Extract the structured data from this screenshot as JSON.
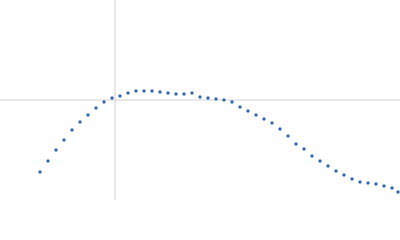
{
  "chart_data": {
    "type": "scatter",
    "x": [
      -0.75,
      -0.67,
      -0.59,
      -0.51,
      -0.43,
      -0.35,
      -0.27,
      -0.19,
      -0.11,
      -0.03,
      0.05,
      0.13,
      0.21,
      0.29,
      0.37,
      0.45,
      0.53,
      0.61,
      0.69,
      0.77,
      0.85,
      0.93,
      1.01,
      1.09,
      1.17,
      1.25,
      1.33,
      1.41,
      1.49,
      1.57,
      1.65,
      1.73,
      1.81,
      1.89,
      1.97,
      2.05,
      2.13,
      2.21,
      2.29,
      2.37,
      2.45,
      2.53,
      2.61,
      2.69,
      2.77,
      2.83
    ],
    "values": [
      -0.72,
      -0.61,
      -0.5,
      -0.4,
      -0.3,
      -0.22,
      -0.15,
      -0.08,
      -0.02,
      0.02,
      0.04,
      0.07,
      0.09,
      0.09,
      0.09,
      0.08,
      0.07,
      0.06,
      0.06,
      0.07,
      0.03,
      0.02,
      0.01,
      0,
      -0.02,
      -0.07,
      -0.11,
      -0.15,
      -0.19,
      -0.23,
      -0.29,
      -0.36,
      -0.44,
      -0.49,
      -0.56,
      -0.61,
      -0.66,
      -0.71,
      -0.75,
      -0.79,
      -0.82,
      -0.83,
      -0.84,
      -0.86,
      -0.88,
      -0.92
    ],
    "color": "#2f65b0",
    "xlim": [
      -1.15,
      2.85
    ],
    "ylim": [
      -1,
      1
    ],
    "xticks": [
      0
    ],
    "yticks": [
      0
    ],
    "grid": true,
    "tick_labels": false
  }
}
